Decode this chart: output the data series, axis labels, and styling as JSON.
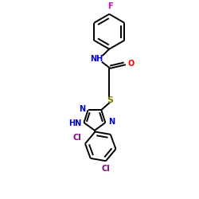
{
  "figure_size": [
    2.5,
    2.5
  ],
  "dpi": 100,
  "background": "#ffffff",
  "bond_color": "#000000",
  "N_color": "#0000cc",
  "O_color": "#ff0000",
  "S_color": "#808000",
  "F_color": "#cc00cc",
  "Cl_color": "#800080",
  "line_width": 1.4,
  "font_size": 7.0,
  "xlim": [
    0,
    10
  ],
  "ylim": [
    0,
    10
  ]
}
